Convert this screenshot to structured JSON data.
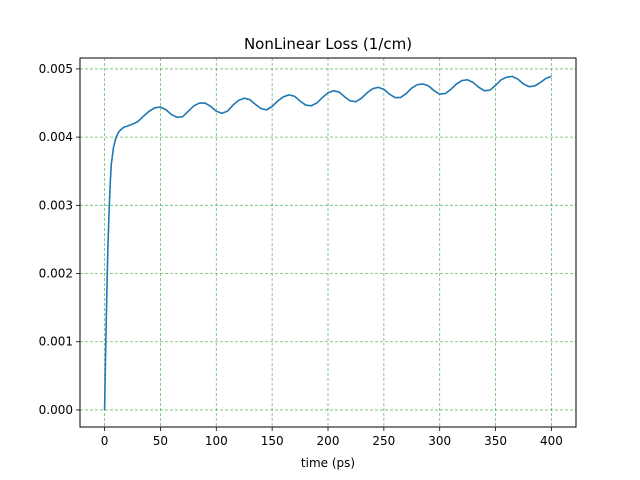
{
  "chart_data": {
    "type": "line",
    "title": "NonLinear Loss (1/cm)",
    "xlabel": "time (ps)",
    "ylabel": "",
    "xlim": [
      -22,
      422
    ],
    "ylim": [
      -0.00025,
      0.00516
    ],
    "x_ticks": [
      0,
      50,
      100,
      150,
      200,
      250,
      300,
      350,
      400
    ],
    "x_tick_labels": [
      "0",
      "50",
      "100",
      "150",
      "200",
      "250",
      "300",
      "350",
      "400"
    ],
    "y_ticks": [
      0.0,
      0.001,
      0.002,
      0.003,
      0.004,
      0.005
    ],
    "y_tick_labels": [
      "0.000",
      "0.001",
      "0.002",
      "0.003",
      "0.004",
      "0.005"
    ],
    "grid": true,
    "grid_color": "#2ca02c",
    "line_color": "#1f77b4",
    "series": [
      {
        "x": [
          0,
          1,
          2,
          3,
          4,
          5,
          6,
          8,
          10,
          12,
          14,
          16,
          18,
          20,
          25,
          30,
          35,
          40,
          45,
          50,
          55,
          60,
          65,
          70,
          75,
          80,
          85,
          90,
          95,
          100,
          105,
          110,
          115,
          120,
          125,
          130,
          135,
          140,
          145,
          150,
          155,
          160,
          165,
          170,
          175,
          180,
          185,
          190,
          195,
          200,
          205,
          210,
          215,
          220,
          225,
          230,
          235,
          240,
          245,
          250,
          255,
          260,
          265,
          270,
          275,
          280,
          285,
          290,
          295,
          300,
          305,
          310,
          315,
          320,
          325,
          330,
          335,
          340,
          345,
          350,
          355,
          360,
          365,
          370,
          375,
          380,
          385,
          390,
          395,
          400
        ],
        "values": [
          0.0,
          0.0009,
          0.0017,
          0.0024,
          0.0029,
          0.0033,
          0.0036,
          0.00385,
          0.00398,
          0.00406,
          0.0041,
          0.00413,
          0.00415,
          0.00416,
          0.00419,
          0.00423,
          0.00431,
          0.00438,
          0.00443,
          0.00444,
          0.0044,
          0.00433,
          0.00429,
          0.0043,
          0.00438,
          0.00446,
          0.0045,
          0.0045,
          0.00445,
          0.00438,
          0.00435,
          0.00438,
          0.00447,
          0.00454,
          0.00457,
          0.00455,
          0.00448,
          0.00442,
          0.0044,
          0.00445,
          0.00453,
          0.00459,
          0.00462,
          0.0046,
          0.00453,
          0.00447,
          0.00446,
          0.0045,
          0.00458,
          0.00465,
          0.00468,
          0.00466,
          0.00459,
          0.00453,
          0.00452,
          0.00457,
          0.00465,
          0.00471,
          0.00473,
          0.0047,
          0.00463,
          0.00458,
          0.00458,
          0.00464,
          0.00472,
          0.00477,
          0.00478,
          0.00475,
          0.00468,
          0.00463,
          0.00464,
          0.0047,
          0.00478,
          0.00483,
          0.00484,
          0.0048,
          0.00473,
          0.00468,
          0.00469,
          0.00476,
          0.00484,
          0.00488,
          0.00489,
          0.00485,
          0.00478,
          0.00474,
          0.00475,
          0.0048,
          0.00486,
          0.00489
        ]
      }
    ]
  }
}
